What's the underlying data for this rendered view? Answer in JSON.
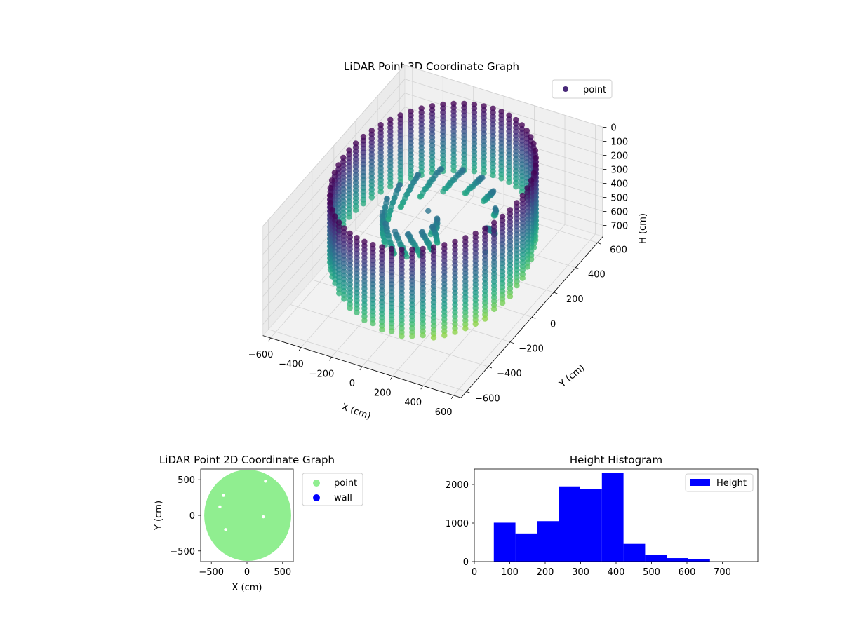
{
  "chart_data": [
    {
      "type": "scatter",
      "projection": "3d",
      "title": "LiDAR Point 3D Coordinate Graph",
      "xlabel": "X (cm)",
      "ylabel": "Y (cm)",
      "zlabel": "H (cm)",
      "xlim": [
        -650,
        650
      ],
      "ylim": [
        -650,
        650
      ],
      "zlim": [
        0,
        780
      ],
      "z_inverted": true,
      "x_ticks": [
        -600,
        -400,
        -200,
        0,
        200,
        400,
        600
      ],
      "y_ticks": [
        -600,
        -400,
        -200,
        0,
        200,
        400,
        600
      ],
      "z_ticks": [
        0,
        100,
        200,
        300,
        400,
        500,
        600,
        700
      ],
      "legend": {
        "placement": "upper-right",
        "entries": [
          "point"
        ]
      },
      "colormap": "viridis",
      "colors": {
        "marker": "#482878",
        "high": "#fde725",
        "mid": "#21918c",
        "low": "#440154"
      },
      "grid": true,
      "series": [
        {
          "name": "point",
          "description_shape": "ring wall of radius ~550 cm plus inner floor points",
          "wall_radius": 550,
          "wall_height_range": [
            0,
            480
          ],
          "floor_height_range": [
            300,
            480
          ]
        }
      ]
    },
    {
      "type": "scatter",
      "title": "LiDAR Point 2D Coordinate Graph",
      "xlabel": "X (cm)",
      "ylabel": "Y (cm)",
      "xlim": [
        -650,
        650
      ],
      "ylim": [
        -650,
        650
      ],
      "x_ticks": [
        -500,
        0,
        500
      ],
      "y_ticks": [
        -500,
        0,
        500
      ],
      "legend": {
        "placement": "outside-right",
        "entries": [
          "point",
          "wall"
        ]
      },
      "series": [
        {
          "name": "point",
          "color": "#90ee90",
          "shape": "filled disc radius ~610"
        },
        {
          "name": "wall",
          "color": "#0000ff"
        }
      ]
    },
    {
      "type": "bar",
      "subtype": "histogram",
      "title": "Height Histogram",
      "xlim": [
        0,
        800
      ],
      "ylim": [
        0,
        2400
      ],
      "x_ticks": [
        0,
        100,
        200,
        300,
        400,
        500,
        600,
        700
      ],
      "y_ticks": [
        0,
        1000,
        2000
      ],
      "legend": {
        "placement": "upper-right",
        "entries": [
          "Height"
        ]
      },
      "color": "#0000ff",
      "series": [
        {
          "name": "Height",
          "bin_edges": [
            55,
            116,
            177,
            238,
            299,
            360,
            421,
            482,
            543,
            604,
            665
          ],
          "values": [
            1010,
            730,
            1050,
            1950,
            1880,
            2300,
            460,
            180,
            90,
            70
          ]
        }
      ]
    }
  ]
}
